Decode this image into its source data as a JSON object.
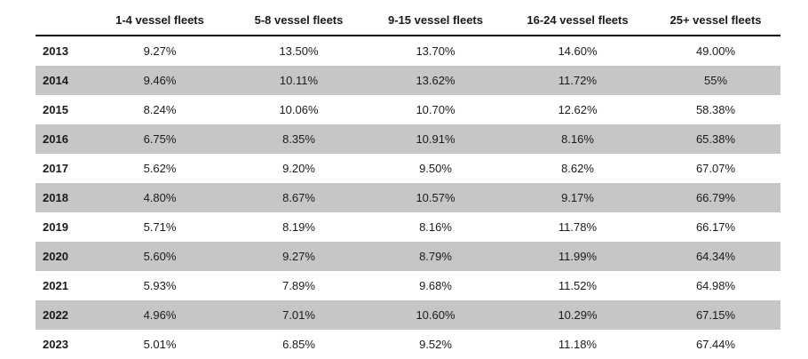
{
  "table": {
    "headers": [
      "",
      "1-4 vessel fleets",
      "5-8 vessel fleets",
      "9-15 vessel fleets",
      "16-24 vessel fleets",
      "25+ vessel fleets"
    ],
    "rows": [
      {
        "year": "2013",
        "values": [
          "9.27%",
          "13.50%",
          "13.70%",
          "14.60%",
          "49.00%"
        ]
      },
      {
        "year": "2014",
        "values": [
          "9.46%",
          "10.11%",
          "13.62%",
          "11.72%",
          "55%"
        ]
      },
      {
        "year": "2015",
        "values": [
          "8.24%",
          "10.06%",
          "10.70%",
          "12.62%",
          "58.38%"
        ]
      },
      {
        "year": "2016",
        "values": [
          "6.75%",
          "8.35%",
          "10.91%",
          "8.16%",
          "65.38%"
        ]
      },
      {
        "year": "2017",
        "values": [
          "5.62%",
          "9.20%",
          "9.50%",
          "8.62%",
          "67.07%"
        ]
      },
      {
        "year": "2018",
        "values": [
          "4.80%",
          "8.67%",
          "10.57%",
          "9.17%",
          "66.79%"
        ]
      },
      {
        "year": "2019",
        "values": [
          "5.71%",
          "8.19%",
          "8.16%",
          "11.78%",
          "66.17%"
        ]
      },
      {
        "year": "2020",
        "values": [
          "5.60%",
          "9.27%",
          "8.79%",
          "11.99%",
          "64.34%"
        ]
      },
      {
        "year": "2021",
        "values": [
          "5.93%",
          "7.89%",
          "9.68%",
          "11.52%",
          "64.98%"
        ]
      },
      {
        "year": "2022",
        "values": [
          "4.96%",
          "7.01%",
          "10.60%",
          "10.29%",
          "67.15%"
        ]
      },
      {
        "year": "2023",
        "values": [
          "5.01%",
          "6.85%",
          "9.52%",
          "11.18%",
          "67.44%"
        ]
      }
    ],
    "shade_color": "#c6c6c6",
    "rule_color": "#000000"
  }
}
